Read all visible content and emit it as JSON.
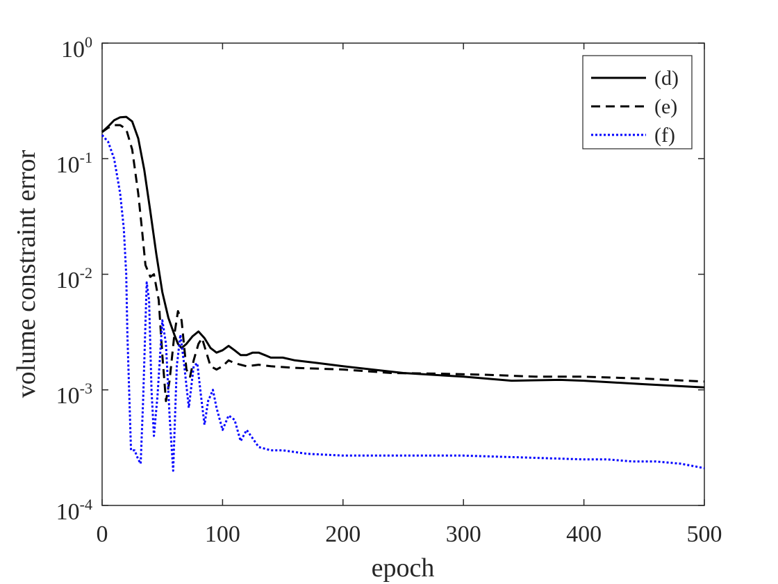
{
  "chart_data": {
    "type": "line",
    "title": "",
    "xlabel": "epoch",
    "ylabel": "volume constraint error",
    "xlim": [
      0,
      500
    ],
    "ylim": [
      0.0001,
      1
    ],
    "yscale": "log",
    "grid": false,
    "legend_position": "top-right",
    "x_ticks": [
      "0",
      "100",
      "200",
      "300",
      "400",
      "500"
    ],
    "y_ticks": [
      {
        "base": "10",
        "exp": "0"
      },
      {
        "base": "10",
        "exp": "-1"
      },
      {
        "base": "10",
        "exp": "-2"
      },
      {
        "base": "10",
        "exp": "-3"
      },
      {
        "base": "10",
        "exp": "-4"
      }
    ],
    "series": [
      {
        "name": "(d)",
        "color": "#000000",
        "style": "solid",
        "points": [
          [
            0,
            0.17
          ],
          [
            5,
            0.19
          ],
          [
            10,
            0.215
          ],
          [
            15,
            0.228
          ],
          [
            20,
            0.23
          ],
          [
            25,
            0.21
          ],
          [
            30,
            0.15
          ],
          [
            35,
            0.08
          ],
          [
            40,
            0.035
          ],
          [
            45,
            0.015
          ],
          [
            50,
            0.007
          ],
          [
            55,
            0.0042
          ],
          [
            60,
            0.003
          ],
          [
            63,
            0.0025
          ],
          [
            66,
            0.0023
          ],
          [
            70,
            0.0025
          ],
          [
            75,
            0.0029
          ],
          [
            80,
            0.0032
          ],
          [
            85,
            0.0028
          ],
          [
            90,
            0.0023
          ],
          [
            95,
            0.0021
          ],
          [
            100,
            0.0022
          ],
          [
            105,
            0.0024
          ],
          [
            110,
            0.0022
          ],
          [
            115,
            0.002
          ],
          [
            120,
            0.002
          ],
          [
            125,
            0.0021
          ],
          [
            130,
            0.0021
          ],
          [
            135,
            0.002
          ],
          [
            140,
            0.0019
          ],
          [
            150,
            0.0019
          ],
          [
            160,
            0.0018
          ],
          [
            180,
            0.0017
          ],
          [
            200,
            0.0016
          ],
          [
            250,
            0.0014
          ],
          [
            300,
            0.0013
          ],
          [
            340,
            0.0012
          ],
          [
            380,
            0.00122
          ],
          [
            400,
            0.0012
          ],
          [
            450,
            0.00112
          ],
          [
            500,
            0.00105
          ]
        ]
      },
      {
        "name": "(e)",
        "color": "#000000",
        "style": "dashed",
        "points": [
          [
            0,
            0.17
          ],
          [
            5,
            0.185
          ],
          [
            10,
            0.195
          ],
          [
            15,
            0.195
          ],
          [
            20,
            0.18
          ],
          [
            25,
            0.12
          ],
          [
            30,
            0.05
          ],
          [
            33,
            0.025
          ],
          [
            36,
            0.012
          ],
          [
            40,
            0.0095
          ],
          [
            43,
            0.01
          ],
          [
            47,
            0.006
          ],
          [
            50,
            0.002
          ],
          [
            53,
            0.0008
          ],
          [
            56,
            0.0012
          ],
          [
            60,
            0.003
          ],
          [
            63,
            0.0048
          ],
          [
            66,
            0.004
          ],
          [
            70,
            0.0015
          ],
          [
            73,
            0.0013
          ],
          [
            76,
            0.0018
          ],
          [
            80,
            0.0025
          ],
          [
            83,
            0.0028
          ],
          [
            86,
            0.0022
          ],
          [
            90,
            0.0016
          ],
          [
            95,
            0.0015
          ],
          [
            100,
            0.0016
          ],
          [
            105,
            0.0018
          ],
          [
            110,
            0.0017
          ],
          [
            120,
            0.0016
          ],
          [
            130,
            0.00165
          ],
          [
            140,
            0.0016
          ],
          [
            160,
            0.00155
          ],
          [
            200,
            0.0015
          ],
          [
            240,
            0.0014
          ],
          [
            280,
            0.00138
          ],
          [
            320,
            0.00135
          ],
          [
            360,
            0.0013
          ],
          [
            400,
            0.0013
          ],
          [
            450,
            0.00125
          ],
          [
            500,
            0.00118
          ]
        ]
      },
      {
        "name": "(f)",
        "color": "#0000ff",
        "style": "dotted",
        "points": [
          [
            0,
            0.16
          ],
          [
            5,
            0.14
          ],
          [
            10,
            0.1
          ],
          [
            15,
            0.05
          ],
          [
            18,
            0.025
          ],
          [
            20,
            0.01
          ],
          [
            21,
            0.003
          ],
          [
            24,
            0.0003
          ],
          [
            27,
            0.0003
          ],
          [
            30,
            0.00025
          ],
          [
            32,
            0.00023
          ],
          [
            34,
            0.0008
          ],
          [
            37,
            0.0085
          ],
          [
            39,
            0.006
          ],
          [
            41,
            0.001
          ],
          [
            43,
            0.0004
          ],
          [
            46,
            0.0009
          ],
          [
            50,
            0.004
          ],
          [
            53,
            0.0025
          ],
          [
            56,
            0.0006
          ],
          [
            59,
            0.0002
          ],
          [
            62,
            0.0016
          ],
          [
            65,
            0.003
          ],
          [
            68,
            0.0017
          ],
          [
            72,
            0.0007
          ],
          [
            76,
            0.0016
          ],
          [
            79,
            0.0017
          ],
          [
            82,
            0.0009
          ],
          [
            85,
            0.0005
          ],
          [
            88,
            0.0008
          ],
          [
            92,
            0.001
          ],
          [
            95,
            0.0007
          ],
          [
            100,
            0.00045
          ],
          [
            105,
            0.0006
          ],
          [
            110,
            0.00055
          ],
          [
            115,
            0.00036
          ],
          [
            120,
            0.00045
          ],
          [
            125,
            0.00038
          ],
          [
            130,
            0.00032
          ],
          [
            140,
            0.0003
          ],
          [
            150,
            0.0003
          ],
          [
            170,
            0.00028
          ],
          [
            200,
            0.00027
          ],
          [
            250,
            0.00027
          ],
          [
            300,
            0.00027
          ],
          [
            350,
            0.00026
          ],
          [
            400,
            0.00025
          ],
          [
            420,
            0.00025
          ],
          [
            440,
            0.00024
          ],
          [
            460,
            0.00024
          ],
          [
            480,
            0.00023
          ],
          [
            490,
            0.00022
          ],
          [
            500,
            0.00021
          ]
        ]
      }
    ]
  }
}
